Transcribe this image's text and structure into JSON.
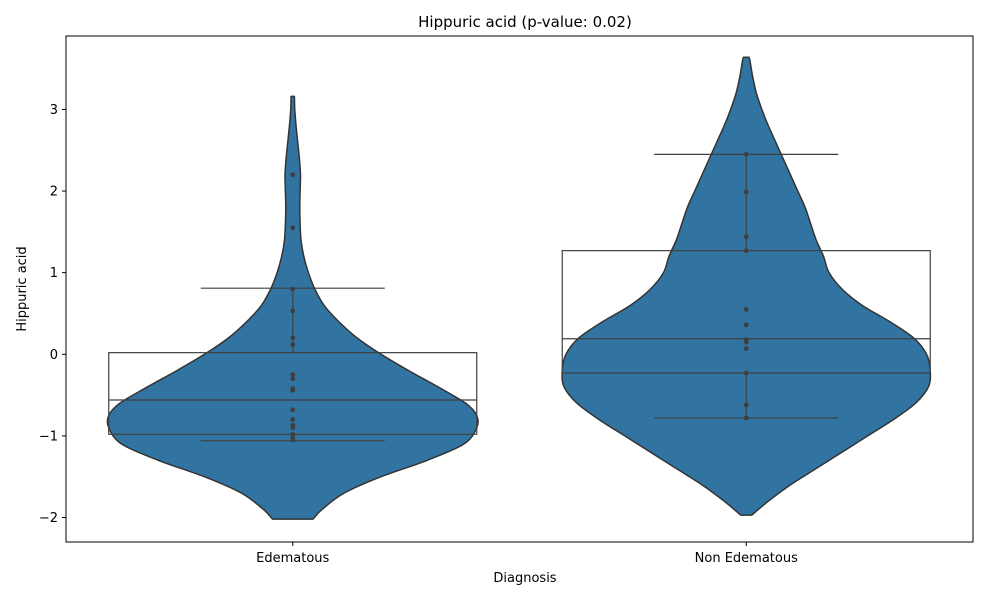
{
  "chart_data": {
    "type": "violin",
    "title": "Hippuric acid (p-value: 0.02)",
    "xlabel": "Diagnosis",
    "ylabel": "Hippuric acid",
    "categories": [
      "Edematous",
      "Non Edematous"
    ],
    "ylim": [
      -2.3,
      3.9
    ],
    "yticks": [
      -2,
      -1,
      0,
      1,
      2,
      3
    ],
    "grid": false,
    "violin_color": "#3274a1",
    "line_color": "#3f3f3f",
    "point_color": "#3f3f3f",
    "groups": [
      {
        "name": "Edematous",
        "points": [
          2.2,
          1.55,
          0.8,
          0.53,
          0.2,
          0.12,
          -0.25,
          -0.3,
          -0.42,
          -0.44,
          -0.68,
          -0.8,
          -0.87,
          -0.9,
          -0.98,
          -1.02,
          -1.05
        ],
        "box": {
          "q1": -0.98,
          "median": -0.56,
          "q3": 0.02
        },
        "whisker": {
          "low": -1.06,
          "high": 0.81
        },
        "violin": {
          "y": [
            -2.02,
            -1.9,
            -1.7,
            -1.5,
            -1.3,
            -1.1,
            -0.9,
            -0.75,
            -0.6,
            -0.4,
            -0.2,
            0.0,
            0.2,
            0.4,
            0.6,
            0.8,
            1.0,
            1.2,
            1.4,
            1.6,
            1.8,
            2.0,
            2.2,
            2.4,
            2.6,
            2.8,
            3.0,
            3.16
          ],
          "w": [
            0.11,
            0.16,
            0.28,
            0.48,
            0.73,
            0.93,
            1.0,
            1.0,
            0.94,
            0.79,
            0.63,
            0.48,
            0.35,
            0.25,
            0.17,
            0.12,
            0.085,
            0.06,
            0.045,
            0.04,
            0.038,
            0.04,
            0.042,
            0.036,
            0.027,
            0.018,
            0.011,
            0.009
          ]
        }
      },
      {
        "name": "Non Edematous",
        "points": [
          2.45,
          1.99,
          1.44,
          1.27,
          0.55,
          0.36,
          0.18,
          0.15,
          0.07,
          -0.23,
          -0.62,
          -0.78
        ],
        "box": {
          "q1": -0.23,
          "median": 0.19,
          "q3": 1.27
        },
        "whisker": {
          "low": -0.78,
          "high": 2.45
        },
        "violin": {
          "y": [
            -1.97,
            -1.8,
            -1.6,
            -1.4,
            -1.2,
            -1.0,
            -0.8,
            -0.6,
            -0.4,
            -0.2,
            0.0,
            0.2,
            0.4,
            0.6,
            0.8,
            1.0,
            1.2,
            1.4,
            1.6,
            1.8,
            2.0,
            2.2,
            2.4,
            2.6,
            2.8,
            3.0,
            3.2,
            3.4,
            3.6,
            3.64
          ],
          "w": [
            0.03,
            0.12,
            0.24,
            0.38,
            0.52,
            0.66,
            0.8,
            0.92,
            0.99,
            1.0,
            0.98,
            0.91,
            0.78,
            0.63,
            0.52,
            0.45,
            0.42,
            0.38,
            0.35,
            0.32,
            0.28,
            0.24,
            0.2,
            0.16,
            0.12,
            0.085,
            0.055,
            0.035,
            0.02,
            0.015
          ]
        }
      }
    ]
  }
}
